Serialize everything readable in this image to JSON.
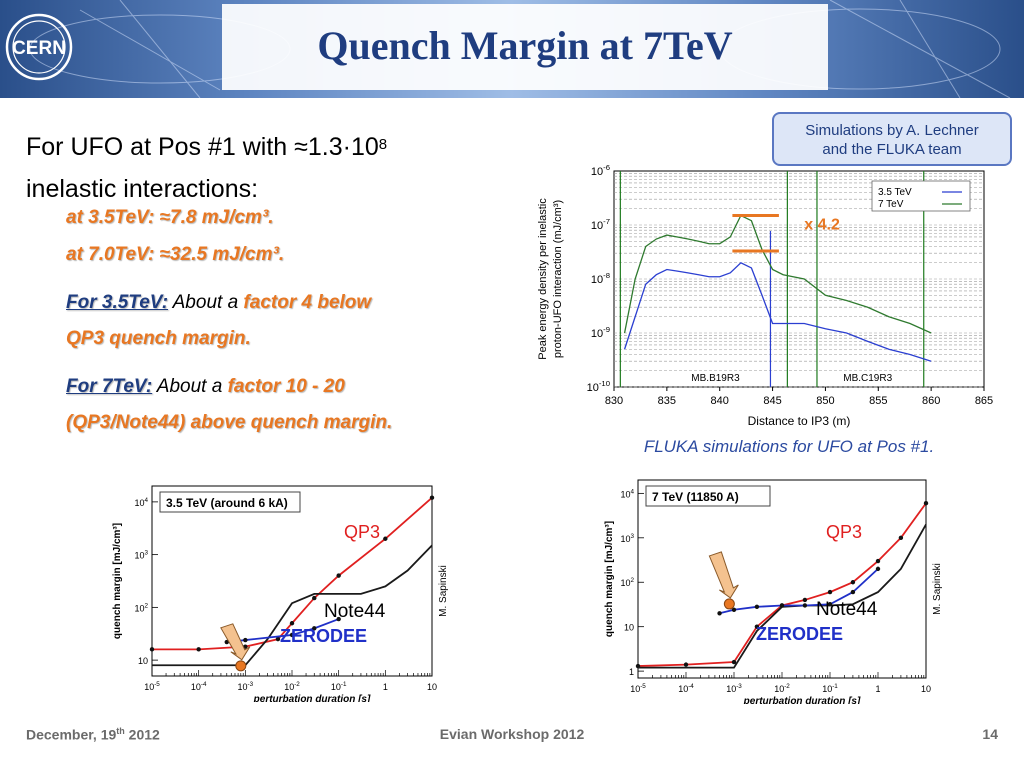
{
  "header": {
    "logo_text": "CERN",
    "title": "Quench Margin at 7TeV"
  },
  "intro": {
    "line1_prefix": "For UFO at Pos #1 with ≈1.3·10",
    "line1_exp": "8",
    "line2": "inelastic interactions:"
  },
  "energy_lines": [
    "at 3.5TeV:  ≈7.8 mJ/cm³.",
    "at 7.0TeV:  ≈32.5 mJ/cm³."
  ],
  "statement_35": {
    "lead": "For 3.5TeV:",
    "mid": " About a ",
    "emph": "factor 4 below",
    "line2": "QP3 quench margin."
  },
  "statement_7": {
    "lead": "For 7TeV:",
    "mid": " About a ",
    "emph": "factor 10 - 20",
    "line2": "(QP3/Note44) above quench margin."
  },
  "sim_box": {
    "line1": "Simulations by A. Lechner",
    "line2": "and the FLUKA team"
  },
  "fluka_caption": "FLUKA simulations for UFO at Pos #1.",
  "footer": {
    "date_prefix": "December, 19",
    "date_sup": "th",
    "date_suffix": " 2012",
    "workshop": "Evian Workshop 2012",
    "page": "14"
  },
  "chart_data": [
    {
      "type": "line",
      "ylabel_line1": "Peak energy density per inelastic",
      "ylabel_line2": "proton-UFO interaction (mJ/cm³)",
      "xlabel": "Distance to IP3 (m)",
      "xlim": [
        830,
        865
      ],
      "ylim": [
        1e-10,
        1e-06
      ],
      "y_scale": "log",
      "x_ticks": [
        "830",
        "835",
        "840",
        "845",
        "850",
        "855",
        "860",
        "865"
      ],
      "y_ticks": [
        {
          "base": "10",
          "exp": "-6"
        },
        {
          "base": "10",
          "exp": "-7"
        },
        {
          "base": "10",
          "exp": "-8"
        },
        {
          "base": "10",
          "exp": "-9"
        },
        {
          "base": "10",
          "exp": "-10"
        }
      ],
      "legend_position": "top-right",
      "annotation": "x 4.2",
      "magnet_labels": [
        "MB.B19R3",
        "MB.C19R3"
      ],
      "series": [
        {
          "name": "3.5 TeV",
          "color": "#2b3fd1",
          "x": [
            831,
            832,
            833,
            834,
            835,
            836,
            837,
            838,
            839,
            840,
            841,
            842,
            843,
            844,
            845,
            846,
            848,
            850,
            852,
            854,
            856,
            858,
            860
          ],
          "values": [
            5e-10,
            2e-09,
            8e-09,
            1.2e-08,
            1.5e-08,
            1.4e-08,
            1.3e-08,
            1.2e-08,
            1.1e-08,
            1.1e-08,
            1.3e-08,
            2e-08,
            1.6e-08,
            5e-09,
            1.5e-09,
            1.5e-09,
            1.5e-09,
            1.2e-09,
            1e-09,
            7e-10,
            5e-10,
            4e-10,
            3e-10
          ]
        },
        {
          "name": "7 TeV",
          "color": "#2f7a2f",
          "x": [
            831,
            832,
            833,
            834,
            835,
            836,
            837,
            838,
            839,
            840,
            841,
            842,
            843,
            844,
            845,
            846,
            848,
            850,
            852,
            854,
            856,
            858,
            860
          ],
          "values": [
            1e-09,
            1e-08,
            4e-08,
            5.5e-08,
            6.5e-08,
            6e-08,
            5.5e-08,
            5e-08,
            4.5e-08,
            4.5e-08,
            6e-08,
            1.5e-07,
            1.2e-07,
            3.5e-08,
            1.5e-08,
            1.2e-08,
            1e-08,
            5e-09,
            4e-09,
            3e-09,
            2e-09,
            1.5e-09,
            1e-09
          ]
        }
      ]
    },
    {
      "type": "line",
      "title": "3.5 TeV (around 6 kA)",
      "ylabel": "quench margin [mJ/cm³]",
      "xlabel": "perturbation duration [s]",
      "x_scale": "log",
      "y_scale": "log",
      "xlim": [
        1e-05,
        10
      ],
      "ylim": [
        5,
        20000
      ],
      "x_ticks": [
        {
          "base": "10",
          "exp": "-5"
        },
        {
          "base": "10",
          "exp": "-4"
        },
        {
          "base": "10",
          "exp": "-3"
        },
        {
          "base": "10",
          "exp": "-2"
        },
        {
          "base": "10",
          "exp": "-1"
        },
        {
          "base": "1",
          "exp": ""
        },
        {
          "base": "10",
          "exp": ""
        }
      ],
      "y_ticks": [
        {
          "base": "10",
          "exp": "4"
        },
        {
          "base": "10",
          "exp": "3"
        },
        {
          "base": "10",
          "exp": "2"
        },
        {
          "base": "10",
          "exp": ""
        }
      ],
      "labels": {
        "qp3": "QP3",
        "note44": "Note44",
        "zerodee": "ZERODEE"
      },
      "credit": "M. Sapinski",
      "ufo_point": {
        "x": 0.0008,
        "y": 7.8
      },
      "series": [
        {
          "key": "QP3",
          "color": "#e02020",
          "x": [
            1e-05,
            0.0001,
            0.001,
            0.005,
            0.01,
            0.03,
            0.1,
            1,
            10
          ],
          "values": [
            16,
            16,
            18,
            25,
            50,
            150,
            400,
            2000,
            12000
          ]
        },
        {
          "key": "Note44",
          "color": "#1a1a1a",
          "x": [
            1e-05,
            0.0001,
            0.001,
            0.003,
            0.01,
            0.03,
            0.1,
            0.3,
            1,
            3,
            10
          ],
          "values": [
            8,
            8,
            8,
            25,
            120,
            180,
            180,
            180,
            250,
            500,
            1500
          ]
        },
        {
          "key": "ZERODEE",
          "color": "#2030c8",
          "x": [
            0.0004,
            0.001,
            0.01,
            0.03,
            0.1
          ],
          "values": [
            22,
            24,
            30,
            40,
            60
          ]
        }
      ]
    },
    {
      "type": "line",
      "title": "7 TeV (11850 A)",
      "ylabel": "quench margin [mJ/cm³]",
      "xlabel": "perturbation duration [s]",
      "x_scale": "log",
      "y_scale": "log",
      "xlim": [
        1e-05,
        10
      ],
      "ylim": [
        0.7,
        20000
      ],
      "x_ticks": [
        {
          "base": "10",
          "exp": "-5"
        },
        {
          "base": "10",
          "exp": "-4"
        },
        {
          "base": "10",
          "exp": "-3"
        },
        {
          "base": "10",
          "exp": "-2"
        },
        {
          "base": "10",
          "exp": "-1"
        },
        {
          "base": "1",
          "exp": ""
        },
        {
          "base": "10",
          "exp": ""
        }
      ],
      "y_ticks": [
        {
          "base": "10",
          "exp": "4"
        },
        {
          "base": "10",
          "exp": "3"
        },
        {
          "base": "10",
          "exp": "2"
        },
        {
          "base": "10",
          "exp": ""
        },
        {
          "base": "1",
          "exp": ""
        }
      ],
      "labels": {
        "qp3": "QP3",
        "note44": "Note44",
        "zerodee": "ZERODEE"
      },
      "credit": "M. Sapinski",
      "ufo_point": {
        "x": 0.0008,
        "y": 32.5
      },
      "series": [
        {
          "key": "QP3",
          "color": "#e02020",
          "x": [
            1e-05,
            0.0001,
            0.001,
            0.003,
            0.01,
            0.03,
            0.1,
            0.3,
            1,
            3,
            10
          ],
          "values": [
            1.3,
            1.4,
            1.6,
            10,
            30,
            40,
            60,
            100,
            300,
            1000,
            6000
          ]
        },
        {
          "key": "Note44",
          "color": "#1a1a1a",
          "x": [
            1e-05,
            0.0001,
            0.001,
            0.003,
            0.01,
            0.03,
            0.1,
            0.3,
            1,
            3,
            10
          ],
          "values": [
            1.2,
            1.2,
            1.2,
            8,
            28,
            30,
            30,
            32,
            60,
            200,
            2000
          ]
        },
        {
          "key": "ZERODEE",
          "color": "#2030c8",
          "x": [
            0.0005,
            0.001,
            0.003,
            0.01,
            0.03,
            0.1,
            0.3,
            1
          ],
          "values": [
            20,
            24,
            28,
            30,
            30,
            32,
            60,
            200
          ]
        }
      ]
    }
  ]
}
